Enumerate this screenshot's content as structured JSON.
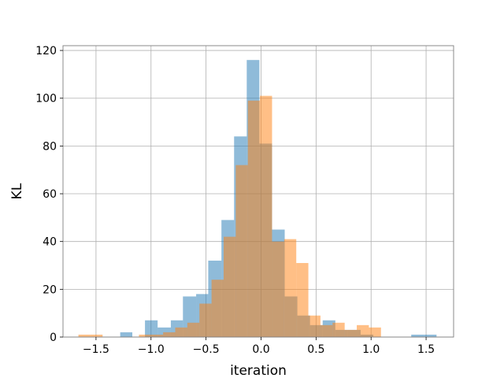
{
  "chart_data": {
    "type": "bar",
    "title": "",
    "xlabel": "iteration",
    "ylabel": "KL",
    "xlim": [
      -1.8,
      1.75
    ],
    "ylim": [
      0,
      122
    ],
    "grid": true,
    "legend": "none",
    "xticks": [
      -1.5,
      -1.0,
      -0.5,
      0.0,
      0.5,
      1.0,
      1.5
    ],
    "xtick_labels": [
      "−1.5",
      "−1.0",
      "−0.5",
      "0.0",
      "0.5",
      "1.0",
      "1.5"
    ],
    "yticks": [
      0,
      20,
      40,
      60,
      80,
      100,
      120
    ],
    "ytick_labels": [
      "0",
      "20",
      "40",
      "60",
      "80",
      "100",
      "120"
    ],
    "series": [
      {
        "color": "#1f77b4",
        "opacity": 0.5,
        "bins": [
          {
            "x0": -1.28,
            "x1": -1.17,
            "count": 2
          },
          {
            "x0": -1.055,
            "x1": -0.94,
            "count": 7
          },
          {
            "x0": -0.94,
            "x1": -0.82,
            "count": 4
          },
          {
            "x0": -0.82,
            "x1": -0.71,
            "count": 7
          },
          {
            "x0": -0.71,
            "x1": -0.59,
            "count": 17
          },
          {
            "x0": -0.59,
            "x1": -0.48,
            "count": 18
          },
          {
            "x0": -0.48,
            "x1": -0.36,
            "count": 32
          },
          {
            "x0": -0.36,
            "x1": -0.245,
            "count": 49
          },
          {
            "x0": -0.245,
            "x1": -0.13,
            "count": 84
          },
          {
            "x0": -0.13,
            "x1": -0.015,
            "count": 116
          },
          {
            "x0": -0.015,
            "x1": 0.1,
            "count": 81
          },
          {
            "x0": 0.1,
            "x1": 0.215,
            "count": 45
          },
          {
            "x0": 0.215,
            "x1": 0.33,
            "count": 17
          },
          {
            "x0": 0.33,
            "x1": 0.445,
            "count": 9
          },
          {
            "x0": 0.445,
            "x1": 0.56,
            "count": 5
          },
          {
            "x0": 0.56,
            "x1": 0.675,
            "count": 7
          },
          {
            "x0": 0.675,
            "x1": 0.79,
            "count": 3
          },
          {
            "x0": 0.79,
            "x1": 0.905,
            "count": 3
          },
          {
            "x0": 0.905,
            "x1": 1.02,
            "count": 1
          },
          {
            "x0": 1.365,
            "x1": 1.48,
            "count": 1
          },
          {
            "x0": 1.48,
            "x1": 1.595,
            "count": 1
          }
        ]
      },
      {
        "color": "#ff7f0e",
        "opacity": 0.5,
        "bins": [
          {
            "x0": -1.66,
            "x1": -1.55,
            "count": 1
          },
          {
            "x0": -1.55,
            "x1": -1.44,
            "count": 1
          },
          {
            "x0": -1.11,
            "x1": -1.0,
            "count": 1
          },
          {
            "x0": -1.0,
            "x1": -0.89,
            "count": 1
          },
          {
            "x0": -0.89,
            "x1": -0.78,
            "count": 2
          },
          {
            "x0": -0.78,
            "x1": -0.67,
            "count": 4
          },
          {
            "x0": -0.67,
            "x1": -0.56,
            "count": 6
          },
          {
            "x0": -0.56,
            "x1": -0.45,
            "count": 14
          },
          {
            "x0": -0.45,
            "x1": -0.34,
            "count": 24
          },
          {
            "x0": -0.34,
            "x1": -0.23,
            "count": 42
          },
          {
            "x0": -0.23,
            "x1": -0.12,
            "count": 72
          },
          {
            "x0": -0.12,
            "x1": -0.01,
            "count": 99
          },
          {
            "x0": -0.01,
            "x1": 0.1,
            "count": 101
          },
          {
            "x0": 0.1,
            "x1": 0.21,
            "count": 40
          },
          {
            "x0": 0.21,
            "x1": 0.32,
            "count": 41
          },
          {
            "x0": 0.32,
            "x1": 0.43,
            "count": 31
          },
          {
            "x0": 0.43,
            "x1": 0.54,
            "count": 9
          },
          {
            "x0": 0.54,
            "x1": 0.65,
            "count": 5
          },
          {
            "x0": 0.65,
            "x1": 0.76,
            "count": 6
          },
          {
            "x0": 0.76,
            "x1": 0.87,
            "count": 3
          },
          {
            "x0": 0.87,
            "x1": 0.98,
            "count": 5
          },
          {
            "x0": 0.98,
            "x1": 1.09,
            "count": 4
          }
        ]
      }
    ]
  }
}
